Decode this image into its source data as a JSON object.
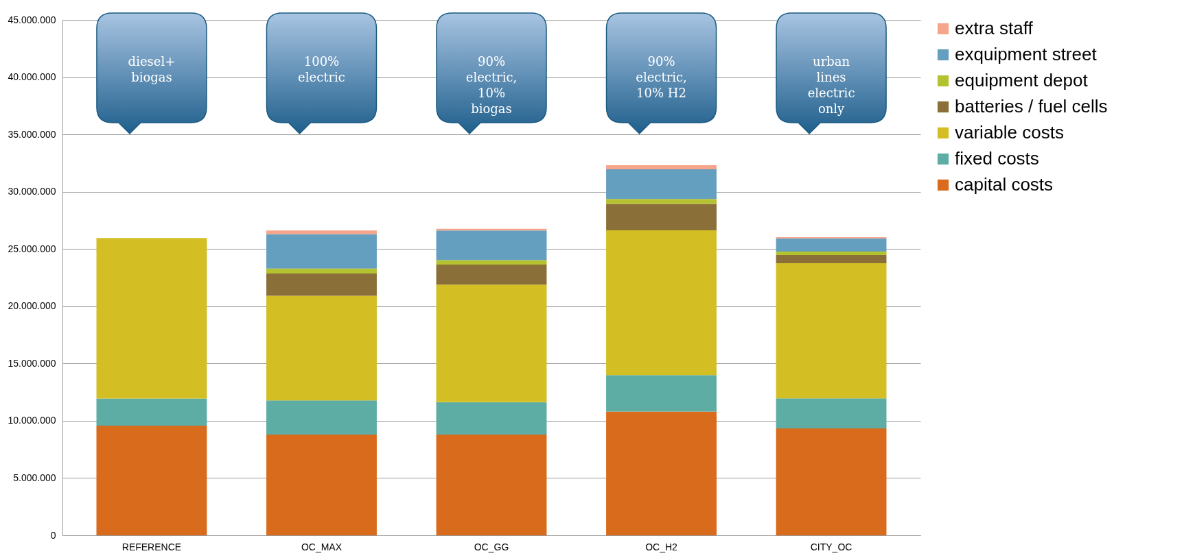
{
  "chart_data": {
    "type": "bar",
    "stacked": true,
    "categories": [
      "REFERENCE",
      "OC_MAX",
      "OC_GG",
      "OC_H2",
      "CITY_OC"
    ],
    "series": [
      {
        "name": "capital costs",
        "color": "#d96b1d",
        "values": [
          9580000,
          8790000,
          8790000,
          10800000,
          9330000
        ]
      },
      {
        "name": "fixed costs",
        "color": "#5dada4",
        "values": [
          2360000,
          2990000,
          2840000,
          3190000,
          2620000
        ]
      },
      {
        "name": "variable costs",
        "color": "#d3bf24",
        "values": [
          14010000,
          9130000,
          10260000,
          12640000,
          11810000
        ]
      },
      {
        "name": "batteries / fuel cells",
        "color": "#8b6f39",
        "values": [
          0,
          1950000,
          1740000,
          2310000,
          710000
        ]
      },
      {
        "name": "equipment depot",
        "color": "#b5c230",
        "values": [
          0,
          430000,
          390000,
          420000,
          300000
        ]
      },
      {
        "name": "exquipment street",
        "color": "#659fc0",
        "values": [
          0,
          2990000,
          2600000,
          2590000,
          1150000
        ]
      },
      {
        "name": "extra staff",
        "color": "#f5a68a",
        "values": [
          0,
          340000,
          150000,
          370000,
          110000
        ]
      }
    ],
    "ylim": [
      0,
      45000000
    ],
    "yticks": [
      0,
      {
        "value": 5000000,
        "label": "5.000.000"
      },
      {
        "value": 10000000,
        "label": "10.000.000"
      },
      {
        "value": 15000000,
        "label": "15.000.000"
      },
      {
        "value": 20000000,
        "label": "20.000.000"
      },
      {
        "value": 25000000,
        "label": "25.000.000"
      },
      {
        "value": 30000000,
        "label": "30.000.000"
      },
      {
        "value": 35000000,
        "label": "35.000.000"
      },
      {
        "value": 40000000,
        "label": "40.000.000"
      },
      {
        "value": 45000000,
        "label": "45.000.000"
      }
    ],
    "grid": "y",
    "legend": "right",
    "annotations": [
      "diesel+\nbiogas",
      "100%\nelectric",
      "90%\nelectric,\n10%\nbiogas",
      "90%\nelectric,\n10% H2",
      "urban\nlines\nelectric\nonly"
    ]
  }
}
